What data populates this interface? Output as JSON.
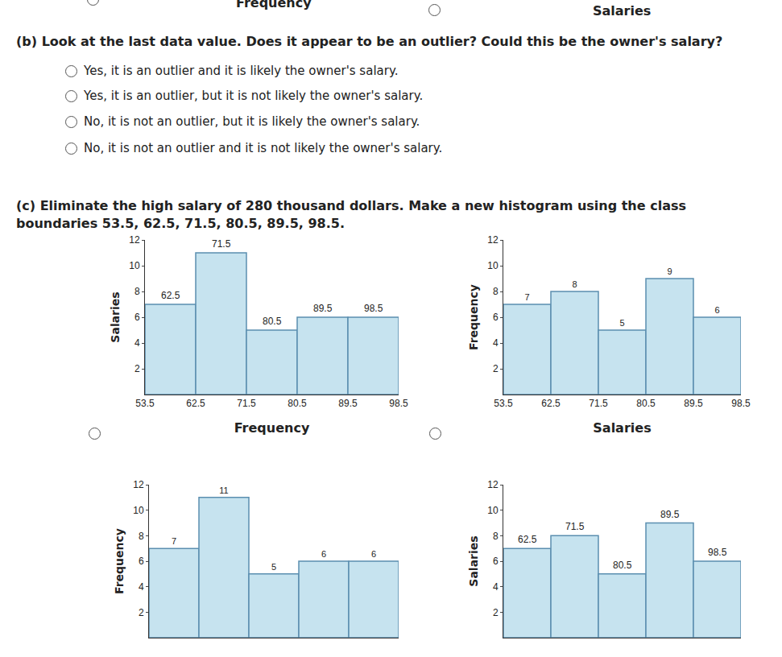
{
  "header": {
    "left_label": "Frequency",
    "right_label": "Salaries"
  },
  "part_b": {
    "question": "(b) Look at the last data value. Does it appear to be an outlier? Could this be the owner's salary?",
    "options": [
      "Yes, it is an outlier and it is likely the owner's salary.",
      "Yes, it is an outlier, but it is not likely the owner's salary.",
      "No, it is not an outlier, but it is likely the owner's salary.",
      "No, it is not an outlier and it is not likely the owner's salary."
    ]
  },
  "part_c": {
    "text": "(c) Eliminate the high salary of 280 thousand dollars. Make a new histogram using the class boundaries 53.5, 62.5, 71.5, 80.5, 89.5, 98.5."
  },
  "chart_data": [
    {
      "type": "histogram",
      "xlabel": "Frequency",
      "ylabel": "Salaries",
      "bins": [
        53.5,
        62.5,
        71.5,
        80.5,
        89.5,
        98.5
      ],
      "values": [
        7,
        11,
        5,
        6,
        6
      ],
      "annotations": [
        "62.5",
        "71.5",
        "80.5",
        "89.5",
        "98.5"
      ],
      "xlim": [
        53.5,
        98.5
      ],
      "xticks": [
        53.5,
        62.5,
        71.5,
        80.5,
        89.5,
        98.5
      ],
      "ylim": [
        0,
        12
      ],
      "yticks": [
        2,
        4,
        6,
        8,
        10,
        12
      ],
      "color": "#c6e3ef",
      "grid": false
    },
    {
      "type": "histogram",
      "xlabel": "Salaries",
      "ylabel": "Frequency",
      "bins": [
        53.5,
        62.5,
        71.5,
        80.5,
        89.5,
        98.5
      ],
      "values": [
        7,
        8,
        5,
        9,
        6
      ],
      "data_labels": true,
      "xlim": [
        53.5,
        98.5
      ],
      "xticks": [
        53.5,
        62.5,
        71.5,
        80.5,
        89.5,
        98.5
      ],
      "ylim": [
        0,
        12
      ],
      "yticks": [
        2,
        4,
        6,
        8,
        10,
        12
      ],
      "color": "#c6e3ef",
      "grid": false
    },
    {
      "type": "histogram",
      "ylabel": "Frequency",
      "bins": [
        53.5,
        62.5,
        71.5,
        80.5,
        89.5,
        98.5
      ],
      "values": [
        7,
        11,
        5,
        6,
        6
      ],
      "data_labels": true,
      "tick_labels": "y",
      "xlim": [
        53.5,
        98.5
      ],
      "ylim": [
        0,
        12
      ],
      "yticks": [
        2,
        4,
        6,
        8,
        10,
        12
      ],
      "color": "#c6e3ef",
      "grid": false
    },
    {
      "type": "histogram",
      "ylabel": "Salaries",
      "bins": [
        53.5,
        62.5,
        71.5,
        80.5,
        89.5,
        98.5
      ],
      "values": [
        7,
        8,
        5,
        9,
        6
      ],
      "annotations": [
        "62.5",
        "71.5",
        "80.5",
        "89.5",
        "98.5"
      ],
      "tick_labels": "y",
      "xlim": [
        53.5,
        98.5
      ],
      "ylim": [
        0,
        12
      ],
      "yticks": [
        2,
        4,
        6,
        8,
        10,
        12
      ],
      "color": "#c6e3ef",
      "grid": false
    }
  ]
}
